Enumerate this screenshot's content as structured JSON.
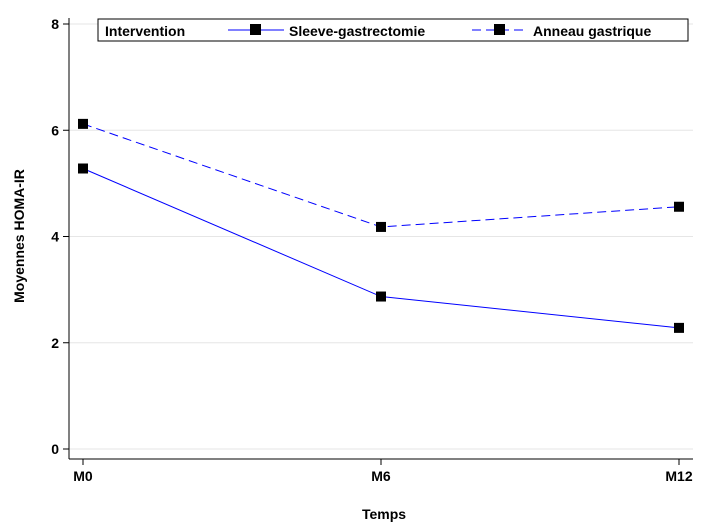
{
  "chart_data": {
    "type": "line",
    "categories": [
      "M0",
      "M6",
      "M12"
    ],
    "xlabel": "Temps",
    "ylabel": "Moyennes HOMA-IR",
    "ylim": [
      0,
      8
    ],
    "yticks": [
      0,
      2,
      4,
      6,
      8
    ],
    "grid": true,
    "legend": {
      "title": "Intervention",
      "placement": "top"
    },
    "series": [
      {
        "name": "Sleeve-gastrectomie",
        "values": [
          5.28,
          2.87,
          2.28
        ],
        "color": "#0000ff",
        "line": "solid",
        "marker": "square"
      },
      {
        "name": "Anneau gastrique",
        "values": [
          6.12,
          4.18,
          4.56
        ],
        "color": "#0000ff",
        "line": "dashed",
        "marker": "square"
      }
    ]
  }
}
